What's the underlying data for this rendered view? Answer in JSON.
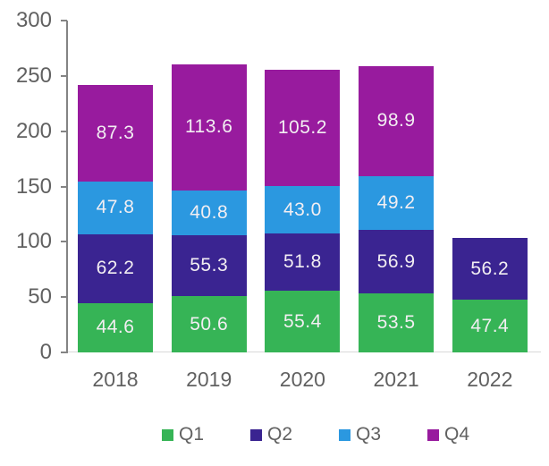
{
  "chart_data": {
    "type": "bar",
    "stacked": true,
    "title": "",
    "xlabel": "",
    "ylabel": "",
    "categories": [
      "2018",
      "2019",
      "2020",
      "2021",
      "2022"
    ],
    "series": [
      {
        "name": "Q1",
        "color": "#36b456",
        "values": [
          44.6,
          50.6,
          55.4,
          53.5,
          47.4
        ]
      },
      {
        "name": "Q2",
        "color": "#3a2491",
        "values": [
          62.2,
          55.3,
          51.8,
          56.9,
          56.2
        ]
      },
      {
        "name": "Q3",
        "color": "#2b98e0",
        "values": [
          47.8,
          40.8,
          43.0,
          49.2,
          null
        ]
      },
      {
        "name": "Q4",
        "color": "#981b9e",
        "values": [
          87.3,
          113.6,
          105.2,
          98.9,
          null
        ]
      }
    ],
    "ylim": [
      0,
      300
    ],
    "yticks": [
      0,
      50,
      100,
      150,
      200,
      250,
      300
    ],
    "grid": false,
    "legend_position": "bottom",
    "legend_entries": [
      "Q1",
      "Q2",
      "Q3",
      "Q4"
    ],
    "value_label_decimals": 1
  },
  "colors": {
    "background": "#ffffff",
    "axis_text": "#616161",
    "axis_line": "#848484",
    "baseline": "#d9d9d9",
    "data_label": "#f2eef2"
  }
}
